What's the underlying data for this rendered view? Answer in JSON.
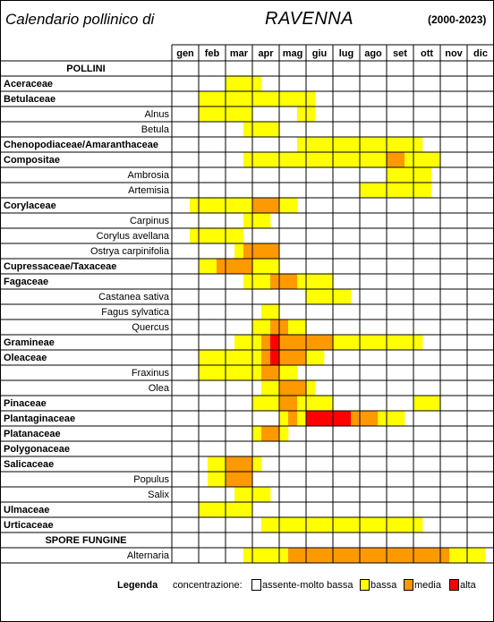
{
  "header": {
    "title": "Calendario pollinico di",
    "city": "RAVENNA",
    "years": "(2000-2023)"
  },
  "colors": {
    "none": "#ffffff",
    "bassa": "#ffff00",
    "media": "#ff9900",
    "alta": "#ff0000"
  },
  "legend": {
    "title": "Legenda",
    "concentration_label": "concentrazione:",
    "items": [
      {
        "key": "none",
        "label": "assente-molto bassa"
      },
      {
        "key": "bassa",
        "label": "bassa"
      },
      {
        "key": "media",
        "label": "media"
      },
      {
        "key": "alta",
        "label": "alta"
      }
    ]
  },
  "chart_data": {
    "type": "heatmap",
    "title": "Calendario pollinico di RAVENNA (2000-2023)",
    "months": [
      "gen",
      "feb",
      "mar",
      "apr",
      "mag",
      "giu",
      "lug",
      "ago",
      "set",
      "ott",
      "nov",
      "dic"
    ],
    "periods_per_month": 3,
    "value_scale": {
      "0": "assente-molto bassa",
      "1": "bassa",
      "2": "media",
      "3": "alta"
    },
    "rows": [
      {
        "label": "POLLINI",
        "kind": "section",
        "values": null
      },
      {
        "label": "Aceraceae",
        "kind": "family",
        "values": [
          0,
          0,
          0,
          0,
          0,
          0,
          1,
          1,
          1,
          1,
          0,
          0,
          0,
          0,
          0,
          0,
          0,
          0,
          0,
          0,
          0,
          0,
          0,
          0,
          0,
          0,
          0,
          0,
          0,
          0,
          0,
          0,
          0,
          0,
          0,
          0
        ]
      },
      {
        "label": "Betulaceae",
        "kind": "family",
        "values": [
          0,
          0,
          0,
          1,
          1,
          1,
          1,
          1,
          1,
          1,
          1,
          1,
          1,
          1,
          1,
          1,
          0,
          0,
          0,
          0,
          0,
          0,
          0,
          0,
          0,
          0,
          0,
          0,
          0,
          0,
          0,
          0,
          0,
          0,
          0,
          0
        ]
      },
      {
        "label": "Alnus",
        "kind": "taxon",
        "values": [
          0,
          0,
          0,
          1,
          1,
          1,
          1,
          1,
          1,
          0,
          0,
          0,
          0,
          0,
          1,
          1,
          0,
          0,
          0,
          0,
          0,
          0,
          0,
          0,
          0,
          0,
          0,
          0,
          0,
          0,
          0,
          0,
          0,
          0,
          0,
          0
        ]
      },
      {
        "label": "Betula",
        "kind": "taxon",
        "values": [
          0,
          0,
          0,
          0,
          0,
          0,
          0,
          0,
          1,
          1,
          1,
          1,
          0,
          0,
          0,
          0,
          0,
          0,
          0,
          0,
          0,
          0,
          0,
          0,
          0,
          0,
          0,
          0,
          0,
          0,
          0,
          0,
          0,
          0,
          0,
          0
        ]
      },
      {
        "label": "Chenopodiaceae/Amaranthaceae",
        "kind": "family",
        "values": [
          0,
          0,
          0,
          0,
          0,
          0,
          0,
          0,
          0,
          0,
          0,
          0,
          0,
          0,
          1,
          1,
          1,
          1,
          1,
          1,
          1,
          1,
          1,
          1,
          1,
          1,
          1,
          1,
          0,
          0,
          0,
          0,
          0,
          0,
          0,
          0
        ]
      },
      {
        "label": "Compositae",
        "kind": "family",
        "values": [
          0,
          0,
          0,
          0,
          0,
          0,
          0,
          0,
          1,
          1,
          1,
          1,
          1,
          1,
          1,
          1,
          1,
          1,
          1,
          1,
          1,
          1,
          1,
          1,
          2,
          2,
          1,
          1,
          1,
          1,
          0,
          0,
          0,
          0,
          0,
          0
        ]
      },
      {
        "label": "Ambrosia",
        "kind": "taxon",
        "values": [
          0,
          0,
          0,
          0,
          0,
          0,
          0,
          0,
          0,
          0,
          0,
          0,
          0,
          0,
          0,
          0,
          0,
          0,
          0,
          0,
          0,
          0,
          0,
          0,
          1,
          1,
          1,
          1,
          1,
          0,
          0,
          0,
          0,
          0,
          0,
          0
        ]
      },
      {
        "label": "Artemisia",
        "kind": "taxon",
        "values": [
          0,
          0,
          0,
          0,
          0,
          0,
          0,
          0,
          0,
          0,
          0,
          0,
          0,
          0,
          0,
          0,
          0,
          0,
          0,
          0,
          0,
          1,
          1,
          1,
          1,
          1,
          1,
          1,
          1,
          0,
          0,
          0,
          0,
          0,
          0,
          0
        ]
      },
      {
        "label": "Corylaceae",
        "kind": "family",
        "values": [
          0,
          0,
          1,
          1,
          1,
          1,
          1,
          1,
          1,
          2,
          2,
          2,
          1,
          1,
          0,
          0,
          0,
          0,
          0,
          0,
          0,
          0,
          0,
          0,
          0,
          0,
          0,
          0,
          0,
          0,
          0,
          0,
          0,
          0,
          0,
          0
        ]
      },
      {
        "label": "Carpinus",
        "kind": "taxon",
        "values": [
          0,
          0,
          0,
          0,
          0,
          0,
          0,
          0,
          1,
          1,
          1,
          0,
          0,
          0,
          0,
          0,
          0,
          0,
          0,
          0,
          0,
          0,
          0,
          0,
          0,
          0,
          0,
          0,
          0,
          0,
          0,
          0,
          0,
          0,
          0,
          0
        ]
      },
      {
        "label": "Corylus avellana",
        "kind": "taxon",
        "values": [
          0,
          0,
          1,
          1,
          1,
          1,
          1,
          1,
          0,
          0,
          0,
          0,
          0,
          0,
          0,
          0,
          0,
          0,
          0,
          0,
          0,
          0,
          0,
          0,
          0,
          0,
          0,
          0,
          0,
          0,
          0,
          0,
          0,
          0,
          0,
          0
        ]
      },
      {
        "label": "Ostrya carpinifolia",
        "kind": "taxon",
        "values": [
          0,
          0,
          0,
          0,
          0,
          0,
          0,
          1,
          2,
          2,
          2,
          2,
          0,
          0,
          0,
          0,
          0,
          0,
          0,
          0,
          0,
          0,
          0,
          0,
          0,
          0,
          0,
          0,
          0,
          0,
          0,
          0,
          0,
          0,
          0,
          0
        ]
      },
      {
        "label": "Cupressaceae/Taxaceae",
        "kind": "family",
        "values": [
          0,
          0,
          0,
          1,
          1,
          2,
          2,
          2,
          2,
          1,
          1,
          1,
          0,
          0,
          0,
          0,
          0,
          0,
          0,
          0,
          0,
          0,
          0,
          0,
          0,
          0,
          0,
          0,
          0,
          0,
          0,
          0,
          0,
          0,
          0,
          0
        ]
      },
      {
        "label": "Fagaceae",
        "kind": "family",
        "values": [
          0,
          0,
          0,
          0,
          0,
          0,
          0,
          0,
          1,
          1,
          1,
          2,
          2,
          2,
          1,
          1,
          1,
          1,
          0,
          0,
          0,
          0,
          0,
          0,
          0,
          0,
          0,
          0,
          0,
          0,
          0,
          0,
          0,
          0,
          0,
          0
        ]
      },
      {
        "label": "Castanea sativa",
        "kind": "taxon",
        "values": [
          0,
          0,
          0,
          0,
          0,
          0,
          0,
          0,
          0,
          0,
          0,
          0,
          0,
          0,
          0,
          1,
          1,
          1,
          1,
          1,
          0,
          0,
          0,
          0,
          0,
          0,
          0,
          0,
          0,
          0,
          0,
          0,
          0,
          0,
          0,
          0
        ]
      },
      {
        "label": "Fagus sylvatica",
        "kind": "taxon",
        "values": [
          0,
          0,
          0,
          0,
          0,
          0,
          0,
          0,
          0,
          0,
          1,
          1,
          0,
          0,
          0,
          0,
          0,
          0,
          0,
          0,
          0,
          0,
          0,
          0,
          0,
          0,
          0,
          0,
          0,
          0,
          0,
          0,
          0,
          0,
          0,
          0
        ]
      },
      {
        "label": "Quercus",
        "kind": "taxon",
        "values": [
          0,
          0,
          0,
          0,
          0,
          0,
          0,
          0,
          0,
          1,
          1,
          2,
          2,
          1,
          1,
          0,
          0,
          0,
          0,
          0,
          0,
          0,
          0,
          0,
          0,
          0,
          0,
          0,
          0,
          0,
          0,
          0,
          0,
          0,
          0,
          0
        ]
      },
      {
        "label": "Gramineae",
        "kind": "family",
        "values": [
          0,
          0,
          0,
          0,
          0,
          0,
          0,
          1,
          1,
          1,
          2,
          3,
          2,
          2,
          2,
          2,
          2,
          2,
          1,
          1,
          1,
          1,
          1,
          1,
          1,
          1,
          1,
          1,
          0,
          0,
          0,
          0,
          0,
          0,
          0,
          0
        ]
      },
      {
        "label": "Oleaceae",
        "kind": "family",
        "values": [
          0,
          0,
          0,
          1,
          1,
          1,
          1,
          1,
          1,
          1,
          2,
          3,
          2,
          2,
          2,
          1,
          1,
          0,
          0,
          0,
          0,
          0,
          0,
          0,
          0,
          0,
          0,
          0,
          0,
          0,
          0,
          0,
          0,
          0,
          0,
          0
        ]
      },
      {
        "label": "Fraxinus",
        "kind": "taxon",
        "values": [
          0,
          0,
          0,
          1,
          1,
          1,
          1,
          1,
          1,
          1,
          2,
          2,
          1,
          1,
          0,
          0,
          0,
          0,
          0,
          0,
          0,
          0,
          0,
          0,
          0,
          0,
          0,
          0,
          0,
          0,
          0,
          0,
          0,
          0,
          0,
          0
        ]
      },
      {
        "label": "Olea",
        "kind": "taxon",
        "values": [
          0,
          0,
          0,
          0,
          0,
          0,
          0,
          0,
          0,
          0,
          1,
          1,
          2,
          2,
          2,
          1,
          0,
          0,
          0,
          0,
          0,
          0,
          0,
          0,
          0,
          0,
          0,
          0,
          0,
          0,
          0,
          0,
          0,
          0,
          0,
          0
        ]
      },
      {
        "label": "Pinaceae",
        "kind": "family",
        "values": [
          0,
          0,
          0,
          0,
          0,
          0,
          0,
          0,
          0,
          1,
          1,
          1,
          2,
          2,
          1,
          1,
          1,
          1,
          0,
          0,
          0,
          0,
          0,
          0,
          0,
          0,
          0,
          1,
          1,
          1,
          0,
          0,
          0,
          0,
          0,
          0
        ]
      },
      {
        "label": "Plantaginaceae",
        "kind": "family",
        "values": [
          0,
          0,
          0,
          0,
          0,
          0,
          0,
          0,
          0,
          0,
          0,
          0,
          1,
          2,
          1,
          3,
          3,
          3,
          3,
          3,
          2,
          2,
          2,
          1,
          1,
          1,
          0,
          0,
          0,
          0,
          0,
          0,
          0,
          0,
          0,
          0
        ]
      },
      {
        "label": "Platanaceae",
        "kind": "family",
        "values": [
          0,
          0,
          0,
          0,
          0,
          0,
          0,
          0,
          0,
          1,
          2,
          2,
          1,
          0,
          0,
          0,
          0,
          0,
          0,
          0,
          0,
          0,
          0,
          0,
          0,
          0,
          0,
          0,
          0,
          0,
          0,
          0,
          0,
          0,
          0,
          0
        ]
      },
      {
        "label": "Polygonaceae",
        "kind": "family",
        "values": [
          0,
          0,
          0,
          0,
          0,
          0,
          0,
          0,
          0,
          0,
          0,
          0,
          0,
          0,
          0,
          0,
          0,
          0,
          0,
          0,
          0,
          0,
          0,
          0,
          0,
          0,
          0,
          0,
          0,
          0,
          0,
          0,
          0,
          0,
          0,
          0
        ]
      },
      {
        "label": "Salicaceae",
        "kind": "family",
        "values": [
          0,
          0,
          0,
          0,
          1,
          1,
          2,
          2,
          2,
          1,
          0,
          0,
          0,
          0,
          0,
          0,
          0,
          0,
          0,
          0,
          0,
          0,
          0,
          0,
          0,
          0,
          0,
          0,
          0,
          0,
          0,
          0,
          0,
          0,
          0,
          0
        ]
      },
      {
        "label": "Populus",
        "kind": "taxon",
        "values": [
          0,
          0,
          0,
          0,
          1,
          1,
          2,
          2,
          2,
          0,
          0,
          0,
          0,
          0,
          0,
          0,
          0,
          0,
          0,
          0,
          0,
          0,
          0,
          0,
          0,
          0,
          0,
          0,
          0,
          0,
          0,
          0,
          0,
          0,
          0,
          0
        ]
      },
      {
        "label": "Salix",
        "kind": "taxon",
        "values": [
          0,
          0,
          0,
          0,
          0,
          0,
          0,
          1,
          1,
          1,
          1,
          0,
          0,
          0,
          0,
          0,
          0,
          0,
          0,
          0,
          0,
          0,
          0,
          0,
          0,
          0,
          0,
          0,
          0,
          0,
          0,
          0,
          0,
          0,
          0,
          0
        ]
      },
      {
        "label": "Ulmaceae",
        "kind": "family",
        "values": [
          0,
          0,
          0,
          1,
          1,
          1,
          1,
          1,
          1,
          0,
          0,
          0,
          0,
          0,
          0,
          0,
          0,
          0,
          0,
          0,
          0,
          0,
          0,
          0,
          0,
          0,
          0,
          0,
          0,
          0,
          0,
          0,
          0,
          0,
          0,
          0
        ]
      },
      {
        "label": "Urticaceae",
        "kind": "family",
        "values": [
          0,
          0,
          0,
          0,
          0,
          0,
          0,
          0,
          0,
          0,
          1,
          1,
          1,
          1,
          1,
          1,
          1,
          1,
          1,
          1,
          1,
          1,
          1,
          1,
          1,
          1,
          1,
          1,
          0,
          0,
          0,
          0,
          0,
          0,
          0,
          0
        ]
      },
      {
        "label": "SPORE FUNGINE",
        "kind": "section",
        "values": null
      },
      {
        "label": "Alternaria",
        "kind": "taxon",
        "values": [
          0,
          0,
          0,
          0,
          0,
          0,
          0,
          0,
          1,
          1,
          1,
          1,
          1,
          2,
          2,
          2,
          2,
          2,
          2,
          2,
          2,
          2,
          2,
          2,
          2,
          2,
          2,
          2,
          2,
          2,
          2,
          1,
          1,
          1,
          1,
          0
        ]
      }
    ]
  }
}
